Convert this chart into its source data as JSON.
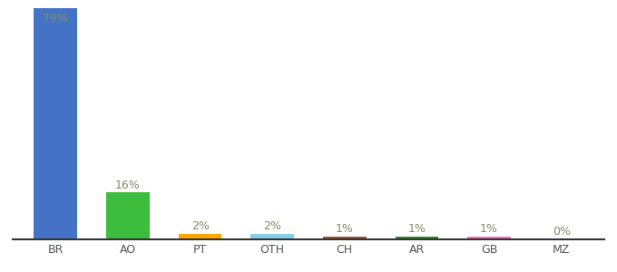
{
  "categories": [
    "BR",
    "AO",
    "PT",
    "OTH",
    "CH",
    "AR",
    "GB",
    "MZ"
  ],
  "values": [
    79,
    16,
    2,
    2,
    1,
    1,
    1,
    0
  ],
  "labels": [
    "79%",
    "16%",
    "2%",
    "2%",
    "1%",
    "1%",
    "1%",
    "0%"
  ],
  "bar_colors": [
    "#4472C4",
    "#3DBD3D",
    "#FFA500",
    "#87CEEB",
    "#A0522D",
    "#228B22",
    "#FF69B4",
    "#CCCCCC"
  ],
  "background_color": "#ffffff",
  "ylim": [
    0,
    79
  ],
  "label_color": "#888866",
  "label_fontsize": 9,
  "bar_width": 0.6
}
